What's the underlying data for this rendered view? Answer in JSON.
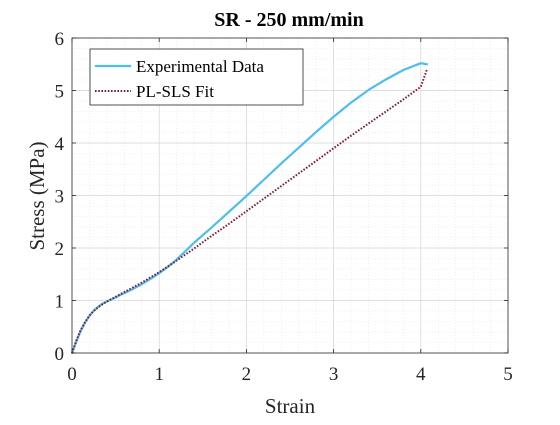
{
  "chart_data": {
    "type": "line",
    "title": "SR - 250 mm/min",
    "xlabel": "Strain",
    "ylabel": "Stress (MPa)",
    "xlim": [
      0,
      5
    ],
    "ylim": [
      0,
      6
    ],
    "xticks": [
      0,
      1,
      2,
      3,
      4,
      5
    ],
    "yticks": [
      0,
      1,
      2,
      3,
      4,
      5,
      6
    ],
    "xtick_labels": [
      "0",
      "1",
      "2",
      "3",
      "4",
      "5"
    ],
    "ytick_labels": [
      "0",
      "1",
      "2",
      "3",
      "4",
      "5",
      "6"
    ],
    "grid": true,
    "minor_grid": true,
    "legend": "top-left",
    "series": [
      {
        "name": "Experimental Data",
        "color": "#4dbeee",
        "style": "solid",
        "x": [
          0,
          0.05,
          0.1,
          0.15,
          0.2,
          0.25,
          0.3,
          0.35,
          0.4,
          0.5,
          0.6,
          0.7,
          0.8,
          0.9,
          1.0,
          1.1,
          1.2,
          1.3,
          1.4,
          1.6,
          1.8,
          2.0,
          2.2,
          2.4,
          2.6,
          2.8,
          3.0,
          3.2,
          3.4,
          3.6,
          3.8,
          4.0,
          4.07
        ],
        "y": [
          0,
          0.22,
          0.42,
          0.58,
          0.71,
          0.81,
          0.88,
          0.94,
          0.98,
          1.06,
          1.14,
          1.22,
          1.31,
          1.41,
          1.52,
          1.64,
          1.78,
          1.94,
          2.1,
          2.39,
          2.69,
          2.99,
          3.3,
          3.61,
          3.91,
          4.21,
          4.5,
          4.77,
          5.01,
          5.21,
          5.39,
          5.52,
          5.5
        ]
      },
      {
        "name": "PL-SLS Fit",
        "color": "#7e1f3c",
        "style": "dotted",
        "x": [
          0,
          0.05,
          0.1,
          0.15,
          0.2,
          0.25,
          0.3,
          0.35,
          0.4,
          0.5,
          0.6,
          0.7,
          0.8,
          0.9,
          1.0,
          1.1,
          1.2,
          1.4,
          1.6,
          1.8,
          2.0,
          2.2,
          2.4,
          2.6,
          2.8,
          3.0,
          3.2,
          3.4,
          3.6,
          3.8,
          4.0,
          4.07
        ],
        "y": [
          0,
          0.24,
          0.44,
          0.59,
          0.71,
          0.8,
          0.87,
          0.93,
          0.98,
          1.07,
          1.16,
          1.25,
          1.34,
          1.44,
          1.54,
          1.65,
          1.76,
          1.99,
          2.23,
          2.46,
          2.7,
          2.94,
          3.18,
          3.42,
          3.66,
          3.9,
          4.14,
          4.37,
          4.6,
          4.83,
          5.07,
          5.4
        ]
      }
    ]
  }
}
